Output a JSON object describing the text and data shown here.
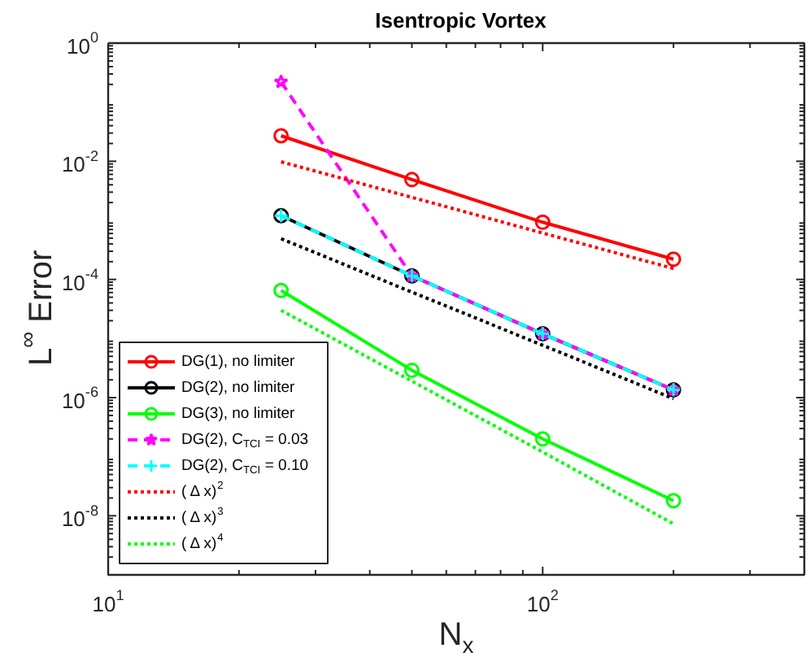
{
  "chart_data": {
    "type": "line",
    "title": "Isentropic Vortex",
    "xlabel": "N$_{x}$",
    "ylabel": "L$^{∞}$ Error",
    "log": "xy",
    "x": [
      25,
      50,
      100,
      200
    ],
    "xlim": [
      10,
      400
    ],
    "xticks": [
      {
        "value": 10,
        "label": "10$^{1}$"
      },
      {
        "value": 100,
        "label": "10$^{2}$"
      }
    ],
    "ylim": [
      1e-09,
      1
    ],
    "yticks": [
      {
        "value": 1,
        "label": "10$^{0}$"
      },
      {
        "value": 0.01,
        "label": "10$^{-2}$"
      },
      {
        "value": 0.0001,
        "label": "10$^{-4}$"
      },
      {
        "value": 1e-06,
        "label": "10$^{-6}$"
      },
      {
        "value": 1e-08,
        "label": "10$^{-8}$"
      }
    ],
    "grid": false,
    "legend": "bottom left",
    "series": [
      {
        "name": "DG(1), no limiter",
        "color": "#ff0000",
        "marker": "circle",
        "line_style": "solid",
        "values": [
          0.027,
          0.0049,
          0.00093,
          0.00022
        ]
      },
      {
        "name": "DG(2), no limiter",
        "color": "#000000",
        "marker": "circle",
        "line_style": "solid",
        "values": [
          0.0012,
          0.000115,
          1.2e-05,
          1.35e-06
        ]
      },
      {
        "name": "DG(3), no limiter",
        "color": "#00ff00",
        "marker": "circle",
        "line_style": "solid",
        "values": [
          6.5e-05,
          2.9e-06,
          2e-07,
          1.8e-08
        ]
      },
      {
        "name": "DG(2), C$_{TCI}$ = 0.03",
        "color": "#ff00ff",
        "marker": "star",
        "line_style": "dashed",
        "values": [
          0.22,
          0.000115,
          1.2e-05,
          1.35e-06
        ]
      },
      {
        "name": "DG(2), C$_{TCI}$ = 0.10",
        "color": "#00ffff",
        "marker": "cross",
        "line_style": "dashed",
        "values": [
          0.0012,
          0.000115,
          1.2e-05,
          1.35e-06
        ]
      },
      {
        "name": "( Δ x)$^{2}$",
        "color": "#ff0000",
        "marker": "none",
        "line_style": "dotted",
        "values": [
          0.0098,
          0.00245,
          0.00061,
          0.000153
        ]
      },
      {
        "name": "( Δ x)$^{3}$",
        "color": "#000000",
        "marker": "none",
        "line_style": "dotted",
        "values": [
          0.00049,
          6.1e-05,
          7.7e-06,
          9.6e-07
        ]
      },
      {
        "name": "( Δ x)$^{4}$",
        "color": "#00ff00",
        "marker": "none",
        "line_style": "dotted",
        "values": [
          3e-05,
          1.9e-06,
          1.2e-07,
          7.3e-09
        ]
      }
    ]
  }
}
